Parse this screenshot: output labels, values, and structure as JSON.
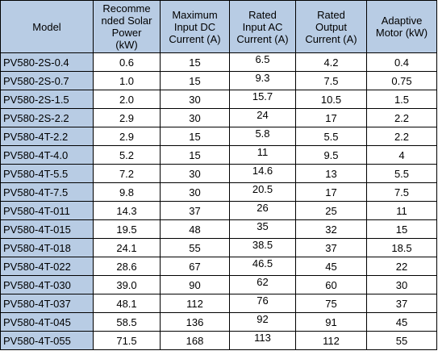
{
  "table": {
    "headers": [
      [
        "Model"
      ],
      [
        "Recomme",
        "nded Solar",
        "Power",
        "(kW)"
      ],
      [
        "Maximum",
        "Input DC",
        "Current (A)"
      ],
      [
        "Rated",
        "Input AC",
        "Current (A)"
      ],
      [
        "Rated",
        "Output",
        "Current (A)"
      ],
      [
        "Adaptive",
        "Motor (kW)"
      ]
    ],
    "rows": [
      [
        "PV580-2S-0.4",
        "0.6",
        "15",
        "6.5",
        "4.2",
        "0.4"
      ],
      [
        "PV580-2S-0.7",
        "1.0",
        "15",
        "9.3",
        "7.5",
        "0.75"
      ],
      [
        "PV580-2S-1.5",
        "2.0",
        "30",
        "15.7",
        "10.5",
        "1.5"
      ],
      [
        "PV580-2S-2.2",
        "2.9",
        "30",
        "24",
        "17",
        "2.2"
      ],
      [
        "PV580-4T-2.2",
        "2.9",
        "15",
        "5.8",
        "5.5",
        "2.2"
      ],
      [
        "PV580-4T-4.0",
        "5.2",
        "15",
        "11",
        "9.5",
        "4"
      ],
      [
        "PV580-4T-5.5",
        "7.2",
        "30",
        "14.6",
        "13",
        "5.5"
      ],
      [
        "PV580-4T-7.5",
        "9.8",
        "30",
        "20.5",
        "17",
        "7.5"
      ],
      [
        "PV580-4T-011",
        "14.3",
        "37",
        "26",
        "25",
        "11"
      ],
      [
        "PV580-4T-015",
        "19.5",
        "48",
        "35",
        "32",
        "15"
      ],
      [
        "PV580-4T-018",
        "24.1",
        "55",
        "38.5",
        "37",
        "18.5"
      ],
      [
        "PV580-4T-022",
        "28.6",
        "67",
        "46.5",
        "45",
        "22"
      ],
      [
        "PV580-4T-030",
        "39.0",
        "90",
        "62",
        "60",
        "30"
      ],
      [
        "PV580-4T-037",
        "48.1",
        "112",
        "76",
        "75",
        "37"
      ],
      [
        "PV580-4T-045",
        "58.5",
        "136",
        "92",
        "91",
        "45"
      ],
      [
        "PV580-4T-055",
        "71.5",
        "168",
        "113",
        "112",
        "55"
      ]
    ]
  },
  "colors": {
    "header_bg": "#b8cce4",
    "model_col_bg": "#b8cce4",
    "border": "#000000"
  }
}
